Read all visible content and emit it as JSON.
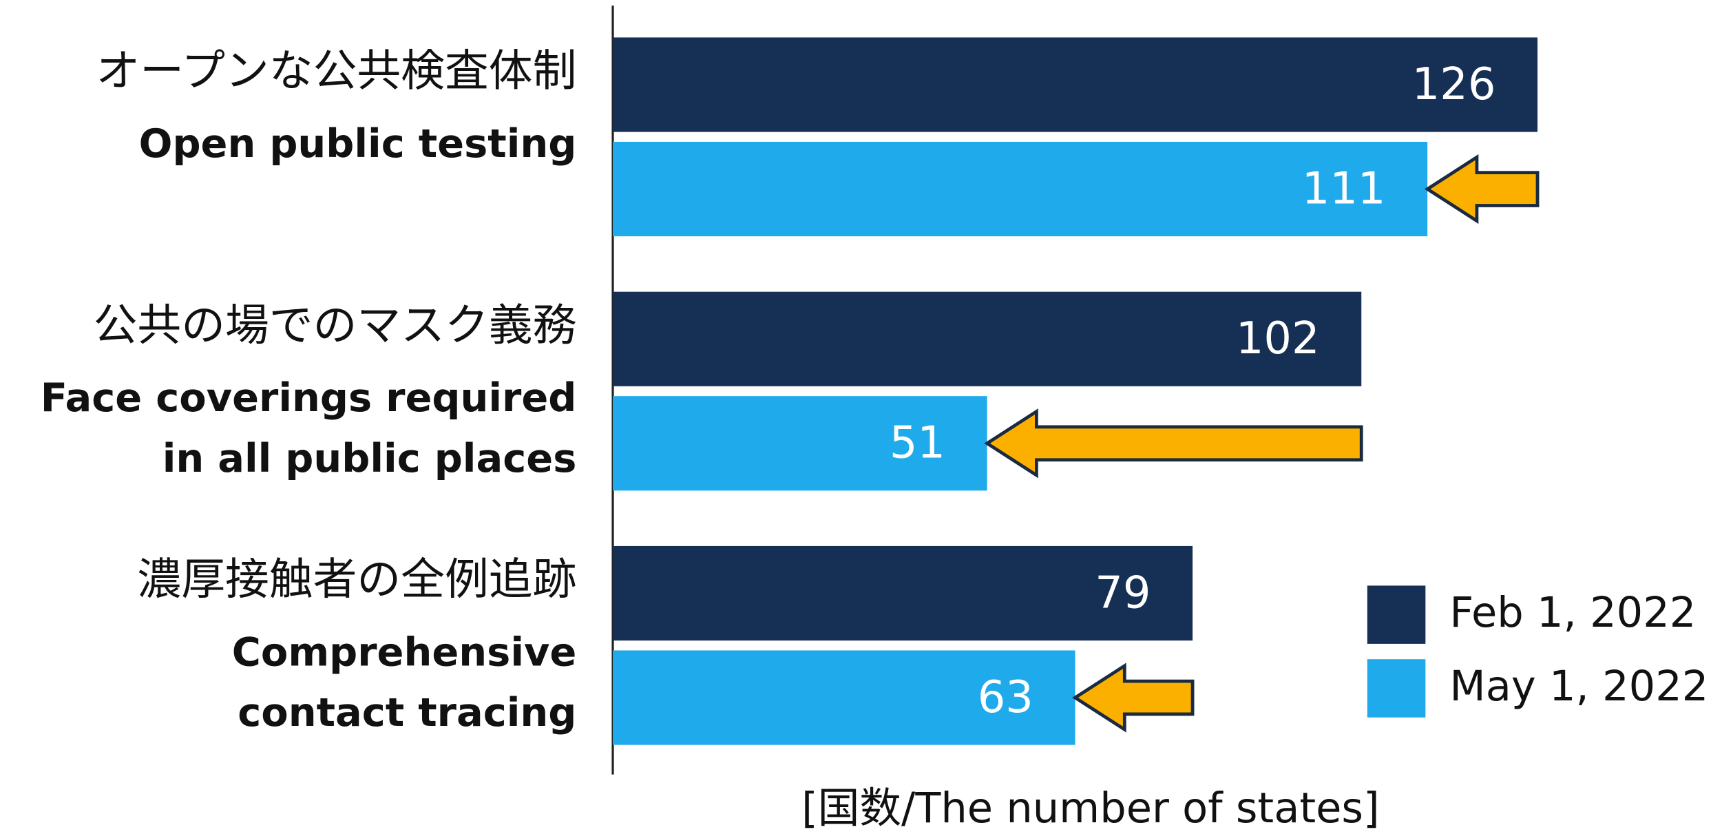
{
  "chart_data": {
    "type": "bar",
    "orientation": "horizontal",
    "categories": [
      [
        "オープンな公共検査体制",
        "Open public testing"
      ],
      [
        "公共の場でのマスク義務",
        "Face coverings required",
        "in all public places"
      ],
      [
        "濃厚接触者の全例追跡",
        "Comprehensive",
        "contact tracing"
      ]
    ],
    "series": [
      {
        "name": "Feb 1, 2022",
        "color": "#152f55",
        "values": [
          126,
          102,
          79
        ]
      },
      {
        "name": "May 1, 2022",
        "color": "#1eaaeb",
        "values": [
          111,
          51,
          63
        ]
      }
    ],
    "xlabel": "[国数/The number of states]",
    "xlim": [
      0,
      126
    ],
    "legend": "lower right",
    "arrow_color": "#fbb000"
  }
}
